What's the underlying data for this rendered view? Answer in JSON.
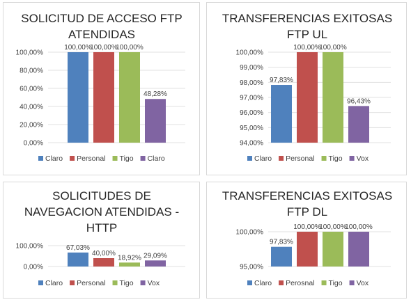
{
  "chart_data": [
    {
      "type": "bar",
      "title_lines": [
        "SOLICITUD DE ACCESO FTP",
        "ATENDIDAS"
      ],
      "categories": [
        "Claro",
        "Personal",
        "Tigo",
        "Claro"
      ],
      "values": [
        100.0,
        100.0,
        100.0,
        48.28
      ],
      "value_labels": [
        "100,00%",
        "100,00%",
        "100,00%",
        "48,28%"
      ],
      "ylim": [
        0,
        100
      ],
      "yticks": [
        0,
        20,
        40,
        60,
        80,
        100
      ],
      "ytick_labels": [
        "0,00%",
        "20,00%",
        "40,00%",
        "60,00%",
        "80,00%",
        "100,00%"
      ],
      "colors": [
        "#4f81bd",
        "#c0504d",
        "#9bbb59",
        "#8064a2"
      ],
      "legend_position": "bottom",
      "grid": true
    },
    {
      "type": "bar",
      "title_lines": [
        "TRANSFERENCIAS EXITOSAS",
        "FTP UL"
      ],
      "categories": [
        "Claro",
        "Personal",
        "Tigo",
        "Vox"
      ],
      "values": [
        97.83,
        100.0,
        100.0,
        96.43
      ],
      "value_labels": [
        "97,83%",
        "100,00%",
        "100,00%",
        "96,43%"
      ],
      "ylim": [
        94,
        100
      ],
      "yticks": [
        94,
        95,
        96,
        97,
        98,
        99,
        100
      ],
      "ytick_labels": [
        "94,00%",
        "95,00%",
        "96,00%",
        "97,00%",
        "98,00%",
        "99,00%",
        "100,00%"
      ],
      "colors": [
        "#4f81bd",
        "#c0504d",
        "#9bbb59",
        "#8064a2"
      ],
      "legend_position": "bottom",
      "grid": true
    },
    {
      "type": "bar",
      "title_lines": [
        "SOLICITUDES DE",
        "NAVEGACION ATENDIDAS -",
        "HTTP"
      ],
      "categories": [
        "Claro",
        "Personal",
        "Tigo",
        "Vox"
      ],
      "values": [
        67.03,
        40.0,
        18.92,
        29.09
      ],
      "value_labels": [
        "67,03%",
        "40,00%",
        "18,92%",
        "29,09%"
      ],
      "ylim": [
        0,
        100
      ],
      "yticks": [
        0,
        100
      ],
      "ytick_labels": [
        "0,00%",
        "100,00%"
      ],
      "colors": [
        "#4f81bd",
        "#c0504d",
        "#9bbb59",
        "#8064a2"
      ],
      "legend_position": "bottom",
      "grid": true
    },
    {
      "type": "bar",
      "title_lines": [
        "TRANSFERENCIAS EXITOSAS",
        "FTP DL"
      ],
      "categories": [
        "Claro",
        "Perosnal",
        "Tigo",
        "Vox"
      ],
      "values": [
        97.83,
        100.0,
        100.0,
        100.0
      ],
      "value_labels": [
        "97,83%",
        "100,00%",
        "100,00%",
        "100,00%"
      ],
      "ylim": [
        95,
        100
      ],
      "yticks": [
        95,
        100
      ],
      "ytick_labels": [
        "95,00%",
        "100,00%"
      ],
      "colors": [
        "#4f81bd",
        "#c0504d",
        "#9bbb59",
        "#8064a2"
      ],
      "legend_position": "bottom",
      "grid": true
    }
  ]
}
